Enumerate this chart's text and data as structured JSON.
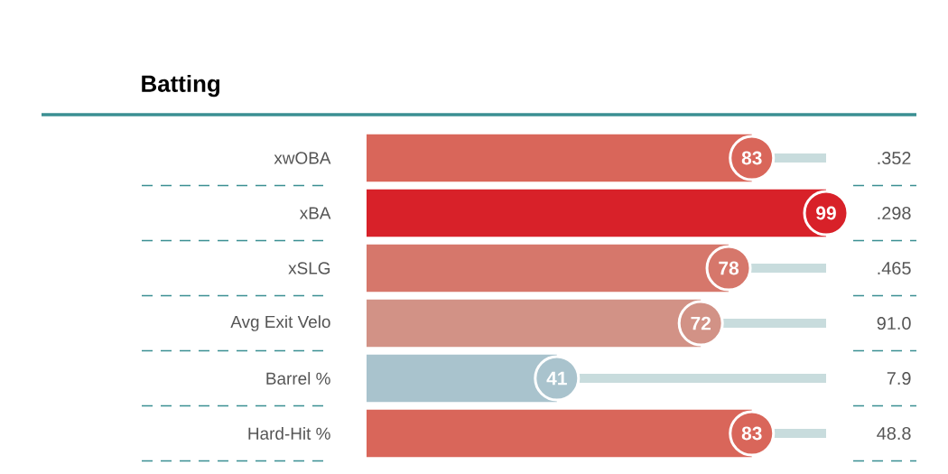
{
  "chart_data": {
    "type": "bar",
    "orientation": "horizontal",
    "title": "Batting",
    "categories": [
      "xwOBA",
      "xBA",
      "xSLG",
      "Avg Exit Velo",
      "Barrel %",
      "Hard-Hit %"
    ],
    "values": [
      83,
      99,
      78,
      72,
      41,
      83
    ],
    "colors": [
      "#d9665a",
      "#d82129",
      "#d6776b",
      "#d29286",
      "#a9c3cd",
      "#d9665a"
    ],
    "tick_labels": "y",
    "data_labels": true,
    "annotations": [
      ".352",
      ".298",
      ".465",
      "91.0",
      "7.9",
      "48.8"
    ]
  }
}
